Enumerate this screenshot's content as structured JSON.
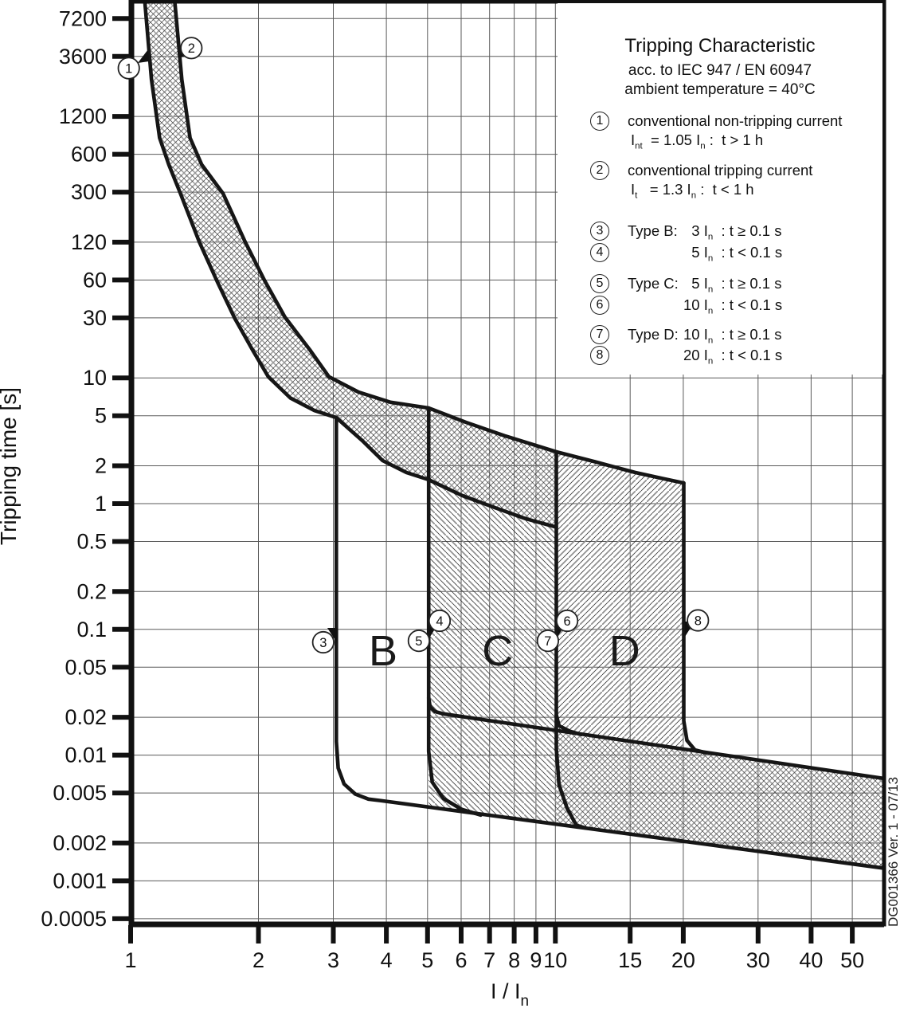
{
  "page": {
    "side_label": "DG001366 Ver. 1 - 07/13"
  },
  "title_block": {
    "title": "Tripping Characteristic",
    "subtitle1": "acc. to IEC 947 / EN 60947",
    "subtitle2": "ambient temperature = 40°C"
  },
  "legend": {
    "items": [
      {
        "num": "1",
        "line1": "conventional non-tripping current",
        "line2": "I~nt~  = 1.05 I~n~ :  t > 1 h"
      },
      {
        "num": "2",
        "line1": "conventional tripping current",
        "line2": "I~t~   = 1.3 I~n~ :  t < 1 h"
      },
      {
        "num": "3",
        "type": "Type B:",
        "cond": "  3 I~n~  : t ≥ 0.1 s"
      },
      {
        "num": "4",
        "type": "",
        "cond": "  5 I~n~  : t < 0.1 s"
      },
      {
        "num": "5",
        "type": "Type C:",
        "cond": "  5 I~n~  : t ≥ 0.1 s"
      },
      {
        "num": "6",
        "type": "",
        "cond": "10 I~n~  : t < 0.1 s"
      },
      {
        "num": "7",
        "type": "Type D:",
        "cond": "10 I~n~  : t ≥ 0.1 s"
      },
      {
        "num": "8",
        "type": "",
        "cond": "20 I~n~  : t < 0.1 s"
      }
    ]
  },
  "chart_data": {
    "type": "line",
    "title": "Tripping Characteristic",
    "xlabel": "I / I~n~",
    "ylabel": "Tripping time [s]",
    "x_scale": "log",
    "y_scale": "log",
    "x_range": [
      1,
      59.6
    ],
    "y_range": [
      0.0004,
      9900
    ],
    "grid": true,
    "x_ticks": [
      {
        "v": 1,
        "label": "1"
      },
      {
        "v": 2,
        "label": "2"
      },
      {
        "v": 3,
        "label": "3"
      },
      {
        "v": 4,
        "label": "4"
      },
      {
        "v": 5,
        "label": "5"
      },
      {
        "v": 6,
        "label": "6"
      },
      {
        "v": 7,
        "label": "7"
      },
      {
        "v": 8,
        "label": "8"
      },
      {
        "v": 9,
        "label": "9"
      },
      {
        "v": 10,
        "label": "10"
      },
      {
        "v": 15,
        "label": "15"
      },
      {
        "v": 20,
        "label": "20"
      },
      {
        "v": 30,
        "label": "30"
      },
      {
        "v": 40,
        "label": "40"
      },
      {
        "v": 50,
        "label": "50"
      }
    ],
    "y_ticks": [
      {
        "v": 7200,
        "label": "7200"
      },
      {
        "v": 3600,
        "label": "3600"
      },
      {
        "v": 1200,
        "label": "1200"
      },
      {
        "v": 600,
        "label": "600"
      },
      {
        "v": 300,
        "label": "300"
      },
      {
        "v": 120,
        "label": "120"
      },
      {
        "v": 60,
        "label": "60"
      },
      {
        "v": 30,
        "label": "30"
      },
      {
        "v": 10,
        "label": "10"
      },
      {
        "v": 5,
        "label": "5"
      },
      {
        "v": 2,
        "label": "2"
      },
      {
        "v": 1,
        "label": "1"
      },
      {
        "v": 0.5,
        "label": "0.5"
      },
      {
        "v": 0.2,
        "label": "0.2"
      },
      {
        "v": 0.1,
        "label": "0.1"
      },
      {
        "v": 0.05,
        "label": "0.05"
      },
      {
        "v": 0.02,
        "label": "0.02"
      },
      {
        "v": 0.01,
        "label": "0.01"
      },
      {
        "v": 0.005,
        "label": "0.005"
      },
      {
        "v": 0.002,
        "label": "0.002"
      },
      {
        "v": 0.001,
        "label": "0.001"
      },
      {
        "v": 0.0005,
        "label": "0.0005"
      }
    ],
    "series": [
      {
        "name": "conventional non-tripping current limit (1.05 In)",
        "points": [
          [
            1.08,
            9900
          ],
          [
            1.12,
            2350
          ],
          [
            1.17,
            810
          ],
          [
            1.23,
            497
          ],
          [
            1.31,
            293
          ],
          [
            1.45,
            121
          ],
          [
            1.6,
            58
          ],
          [
            1.76,
            29.6
          ],
          [
            1.94,
            16.5
          ],
          [
            2.11,
            10.2
          ],
          [
            2.38,
            6.9
          ],
          [
            2.71,
            5.5
          ],
          [
            3.05,
            4.83
          ],
          [
            3.51,
            3.17
          ],
          [
            3.92,
            2.2
          ],
          [
            4.46,
            1.77
          ],
          [
            5.03,
            1.55
          ],
          [
            6.03,
            1.16
          ],
          [
            7.2,
            0.93
          ],
          [
            8.5,
            0.76
          ],
          [
            10.05,
            0.65
          ]
        ]
      },
      {
        "name": "conventional tripping current limit (1.3 In)",
        "points": [
          [
            1.27,
            9900
          ],
          [
            1.32,
            2350
          ],
          [
            1.38,
            810
          ],
          [
            1.47,
            497
          ],
          [
            1.65,
            293
          ],
          [
            1.86,
            121
          ],
          [
            2.07,
            59
          ],
          [
            2.31,
            30.3
          ],
          [
            2.65,
            16.5
          ],
          [
            2.93,
            10.2
          ],
          [
            3.44,
            7.7
          ],
          [
            4.09,
            6.4
          ],
          [
            5.03,
            5.76
          ],
          [
            6.16,
            4.43
          ],
          [
            7.6,
            3.46
          ],
          [
            10.05,
            2.58
          ],
          [
            12.4,
            2.15
          ],
          [
            15.4,
            1.77
          ],
          [
            17.8,
            1.59
          ],
          [
            20.05,
            1.46
          ]
        ]
      },
      {
        "name": "Type B lower magnetic limit (3 In) + instantaneous band lower boundary",
        "points": [
          [
            3.05,
            4.83
          ],
          [
            3.05,
            0.0128
          ],
          [
            3.08,
            0.0079
          ],
          [
            3.18,
            0.0059
          ],
          [
            3.38,
            0.0049
          ],
          [
            3.63,
            0.00447
          ],
          [
            3.87,
            0.00435
          ],
          [
            59.6,
            0.00126
          ]
        ]
      },
      {
        "name": "Type C lower magnetic limit (5 In) + instantaneous band upper boundary",
        "points": [
          [
            5.03,
            5.76
          ],
          [
            5.03,
            0.0285
          ],
          [
            5.07,
            0.0242
          ],
          [
            5.2,
            0.0222
          ],
          [
            5.45,
            0.0213
          ],
          [
            59.6,
            0.0065
          ]
        ]
      },
      {
        "name": "Type B upper magnetic limit (5 In)",
        "points": [
          [
            5.03,
            0.0285
          ],
          [
            5.03,
            0.0107
          ],
          [
            5.13,
            0.0061
          ],
          [
            5.45,
            0.00452
          ],
          [
            6.0,
            0.00372
          ],
          [
            6.67,
            0.00334
          ]
        ]
      },
      {
        "name": "Type D lower magnetic limit (10 In)",
        "points": [
          [
            10.05,
            2.58
          ],
          [
            10.05,
            0.0209
          ],
          [
            10.2,
            0.0171
          ],
          [
            10.8,
            0.0155
          ],
          [
            11.5,
            0.0146
          ]
        ]
      },
      {
        "name": "Type C upper magnetic limit (10 In)",
        "points": [
          [
            10.05,
            0.0209
          ],
          [
            10.05,
            0.0112
          ],
          [
            10.2,
            0.0058
          ],
          [
            10.65,
            0.0038
          ],
          [
            11.2,
            0.00277
          ],
          [
            11.75,
            0.00264
          ]
        ]
      },
      {
        "name": "Type D upper magnetic limit (20 In)",
        "points": [
          [
            20.05,
            1.46
          ],
          [
            20.05,
            0.0187
          ],
          [
            20.4,
            0.0131
          ],
          [
            21.3,
            0.011
          ],
          [
            22.6,
            0.01045
          ]
        ]
      }
    ],
    "regions": [
      {
        "name": "thermal-tripping-band",
        "pattern": "hatch-cross",
        "points": [
          [
            1.08,
            9900
          ],
          [
            1.12,
            2350
          ],
          [
            1.17,
            810
          ],
          [
            1.23,
            497
          ],
          [
            1.31,
            293
          ],
          [
            1.45,
            121
          ],
          [
            1.6,
            58
          ],
          [
            1.76,
            29.6
          ],
          [
            1.94,
            16.5
          ],
          [
            2.11,
            10.2
          ],
          [
            2.38,
            6.9
          ],
          [
            2.71,
            5.5
          ],
          [
            3.05,
            4.83
          ],
          [
            3.51,
            3.17
          ],
          [
            3.92,
            2.2
          ],
          [
            4.46,
            1.77
          ],
          [
            5.03,
            1.55
          ],
          [
            6.03,
            1.16
          ],
          [
            7.2,
            0.93
          ],
          [
            8.5,
            0.76
          ],
          [
            10.05,
            0.65
          ],
          [
            10.05,
            2.58
          ],
          [
            7.6,
            3.46
          ],
          [
            6.16,
            4.43
          ],
          [
            5.03,
            5.76
          ],
          [
            4.09,
            6.4
          ],
          [
            3.44,
            7.7
          ],
          [
            2.93,
            10.2
          ],
          [
            2.65,
            16.5
          ],
          [
            2.31,
            30.3
          ],
          [
            2.07,
            59
          ],
          [
            1.86,
            121
          ],
          [
            1.65,
            293
          ],
          [
            1.47,
            497
          ],
          [
            1.38,
            810
          ],
          [
            1.32,
            2350
          ],
          [
            1.27,
            9900
          ]
        ]
      },
      {
        "name": "type-C-magnetic-zone",
        "pattern": "hatch-back",
        "points": [
          [
            5.03,
            1.55
          ],
          [
            6.03,
            1.16
          ],
          [
            7.2,
            0.93
          ],
          [
            8.5,
            0.76
          ],
          [
            10.05,
            0.65
          ],
          [
            10.05,
            0.00281
          ],
          [
            5.03,
            0.00386
          ]
        ]
      },
      {
        "name": "type-D-magnetic-zone",
        "pattern": "hatch-fwd",
        "points": [
          [
            10.05,
            2.58
          ],
          [
            12.4,
            2.15
          ],
          [
            15.4,
            1.77
          ],
          [
            17.8,
            1.59
          ],
          [
            20.05,
            1.46
          ],
          [
            20.05,
            0.01122
          ],
          [
            10.05,
            0.01574
          ]
        ]
      },
      {
        "name": "instantaneous-tripping-band",
        "pattern": "hatch-cross",
        "points": [
          [
            10.05,
            0.01574
          ],
          [
            59.6,
            0.0065
          ],
          [
            59.6,
            0.00126
          ],
          [
            10.05,
            0.00281
          ]
        ]
      }
    ],
    "markers": [
      {
        "label": "1",
        "x": 0.99,
        "y": 2900
      },
      {
        "label": "2",
        "x": 1.39,
        "y": 4200
      },
      {
        "label": "3",
        "x": 2.84,
        "y": 0.079
      },
      {
        "label": "4",
        "x": 5.34,
        "y": 0.117
      },
      {
        "label": "5",
        "x": 4.77,
        "y": 0.081
      },
      {
        "label": "6",
        "x": 10.66,
        "y": 0.117
      },
      {
        "label": "7",
        "x": 9.6,
        "y": 0.081
      },
      {
        "label": "8",
        "x": 21.66,
        "y": 0.118
      }
    ],
    "zone_labels": [
      {
        "text": "B",
        "x": 3.93,
        "y": 0.068
      },
      {
        "text": "C",
        "x": 7.31,
        "y": 0.068
      },
      {
        "text": "D",
        "x": 14.55,
        "y": 0.068
      }
    ]
  }
}
